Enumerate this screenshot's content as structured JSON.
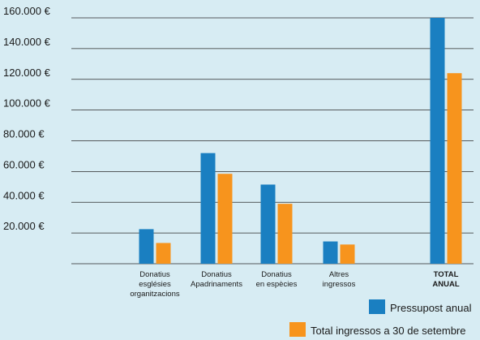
{
  "chart_data": {
    "type": "bar",
    "categories": [
      [
        "Donatius",
        "esglésies",
        "organitzacions"
      ],
      [
        "Donatius",
        "Apadrinaments"
      ],
      [
        "Donatius",
        "en espècies"
      ],
      [
        "Altres",
        "ingressos"
      ],
      [
        "TOTAL",
        "ANUAL"
      ]
    ],
    "category_bold": [
      false,
      false,
      false,
      false,
      true
    ],
    "series": [
      {
        "name": "Pressupost anual",
        "color": "#1a7fc1",
        "values": [
          22500,
          72000,
          51500,
          14500,
          160000
        ]
      },
      {
        "name": "Total ingressos a 30 de setembre",
        "color": "#f7941d",
        "values": [
          13500,
          58500,
          39000,
          12500,
          124000
        ]
      }
    ],
    "y_ticks": [
      "20.000 €",
      "40.000 €",
      "60.000 €",
      "80.000 €",
      "100.000 €",
      "120.000 €",
      "140.000 €",
      "160.000 €"
    ],
    "y_tick_values": [
      20000,
      40000,
      60000,
      80000,
      100000,
      120000,
      140000,
      160000
    ],
    "ylim": [
      0,
      160000
    ],
    "grid": true,
    "legend_position": "bottom-right",
    "background": "#d7ecf3",
    "gridline_color": "#2a2a2a",
    "title": "",
    "xlabel": "",
    "ylabel": ""
  }
}
